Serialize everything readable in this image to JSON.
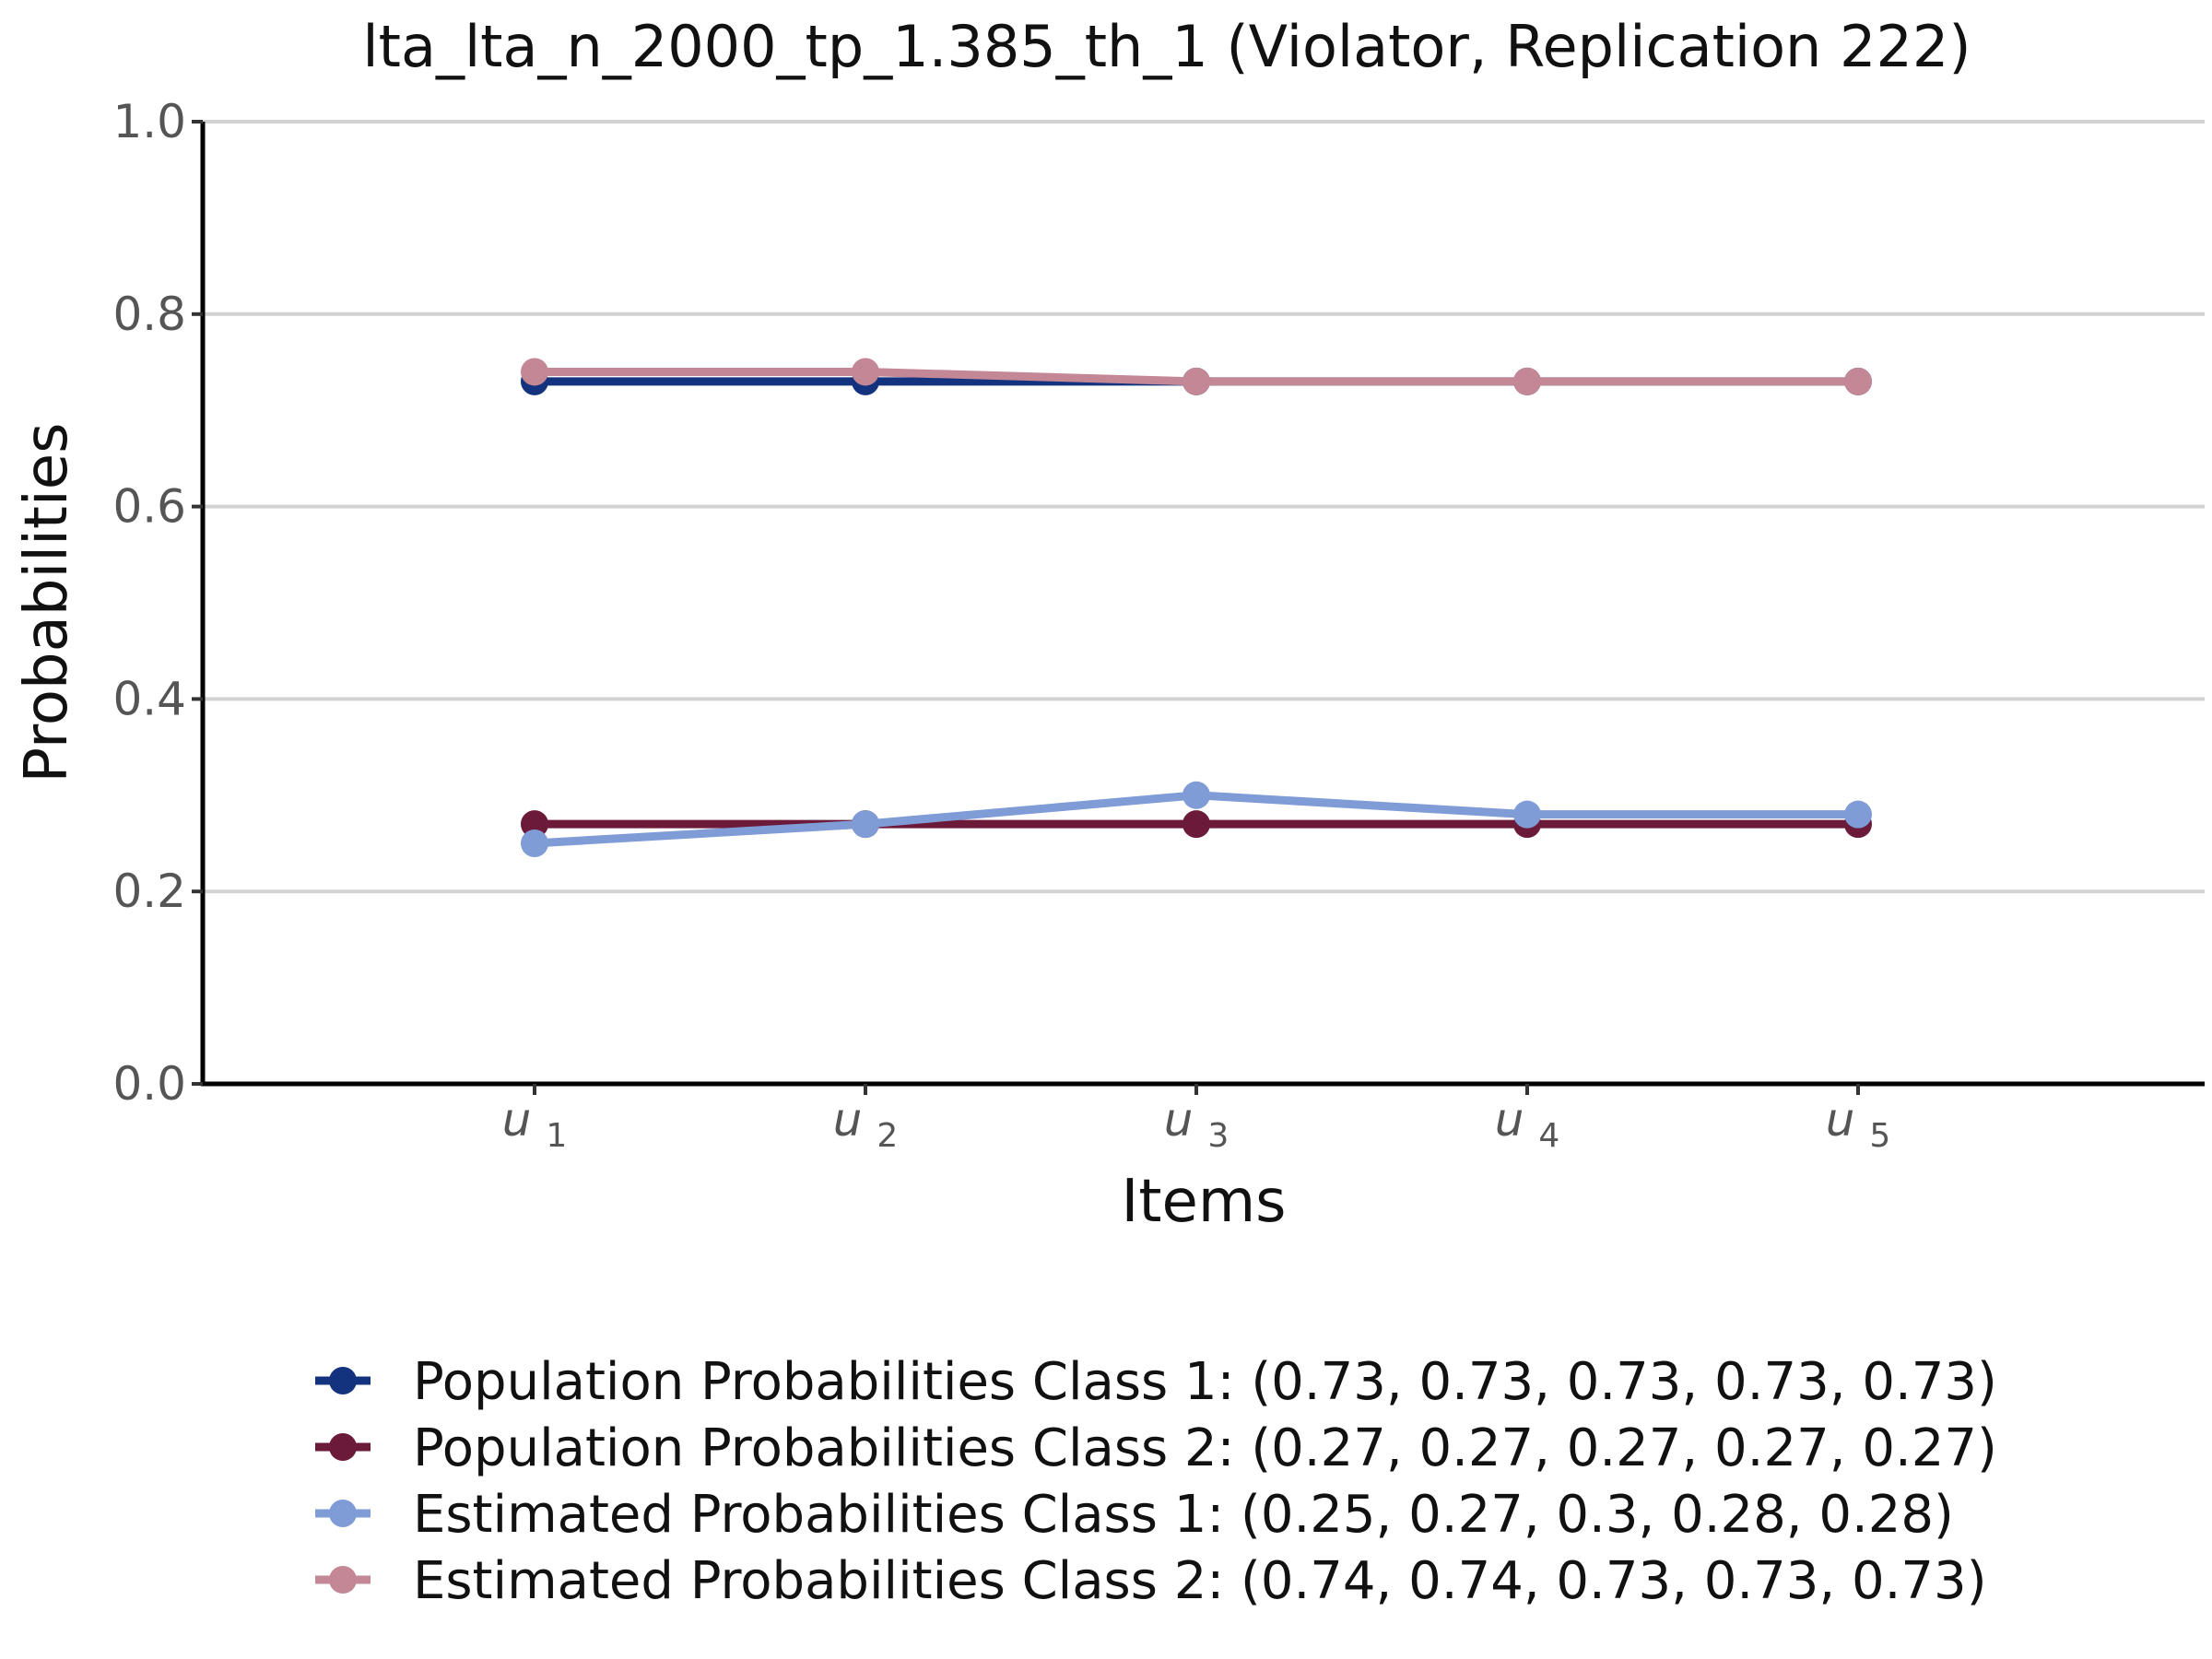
{
  "chart_data": {
    "type": "line",
    "title": "lta_lta_n_2000_tp_1.385_th_1 (Violator, Replication 222)",
    "xlabel": "Items",
    "ylabel": "Probabilities",
    "ylim": [
      0,
      1
    ],
    "yticks": [
      0.0,
      0.2,
      0.4,
      0.6,
      0.8,
      1.0
    ],
    "ytick_labels": [
      "0.0",
      "0.2",
      "0.4",
      "0.6",
      "0.8",
      "1.0"
    ],
    "categories": [
      {
        "base": "u",
        "sub": "1"
      },
      {
        "base": "u",
        "sub": "2"
      },
      {
        "base": "u",
        "sub": "3"
      },
      {
        "base": "u",
        "sub": "4"
      },
      {
        "base": "u",
        "sub": "5"
      }
    ],
    "grid": "horizontal",
    "legend_position": "bottom",
    "series": [
      {
        "name": "Population Probabilities Class 1: (0.73, 0.73, 0.73, 0.73, 0.73)",
        "color": "#14337f",
        "values": [
          0.73,
          0.73,
          0.73,
          0.73,
          0.73
        ]
      },
      {
        "name": "Population Probabilities Class 2: (0.27, 0.27, 0.27, 0.27, 0.27)",
        "color": "#6b1a3a",
        "values": [
          0.27,
          0.27,
          0.27,
          0.27,
          0.27
        ]
      },
      {
        "name": "Estimated Probabilities Class 1: (0.25, 0.27, 0.3, 0.28, 0.28)",
        "color": "#7f9cd6",
        "values": [
          0.25,
          0.27,
          0.3,
          0.28,
          0.28
        ]
      },
      {
        "name": "Estimated Probabilities Class 2: (0.74, 0.74, 0.73, 0.73, 0.73)",
        "color": "#c38796",
        "values": [
          0.74,
          0.74,
          0.73,
          0.73,
          0.73
        ]
      }
    ]
  }
}
